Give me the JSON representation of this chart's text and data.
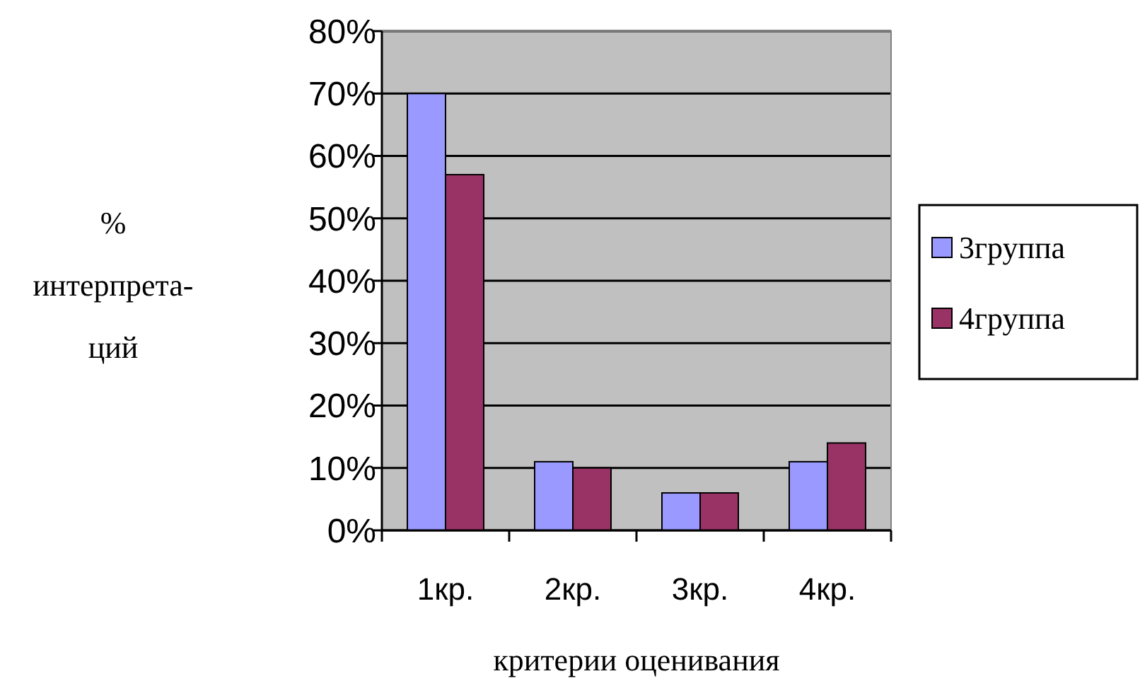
{
  "chart_data": {
    "type": "bar",
    "xlabel": "критерии оценивания",
    "ylabel": "%\nинтерпрета-\nций",
    "categories": [
      "1кр.",
      "2кр.",
      "3кр.",
      "4кр."
    ],
    "series": [
      {
        "name": "3группа",
        "color": "#9999ff",
        "values": [
          70,
          11,
          6,
          11
        ]
      },
      {
        "name": "4группа",
        "color": "#993366",
        "values": [
          57,
          10,
          6,
          14
        ]
      }
    ],
    "ylim": [
      0,
      80
    ],
    "yticks": [
      {
        "value": 0,
        "label": "0%"
      },
      {
        "value": 10,
        "label": "10%"
      },
      {
        "value": 20,
        "label": "20%"
      },
      {
        "value": 30,
        "label": "30%"
      },
      {
        "value": 40,
        "label": "40%"
      },
      {
        "value": 50,
        "label": "50%"
      },
      {
        "value": 60,
        "label": "60%"
      },
      {
        "value": 70,
        "label": "70%"
      },
      {
        "value": 80,
        "label": "80%"
      }
    ],
    "grid": "y",
    "legend": "right"
  }
}
